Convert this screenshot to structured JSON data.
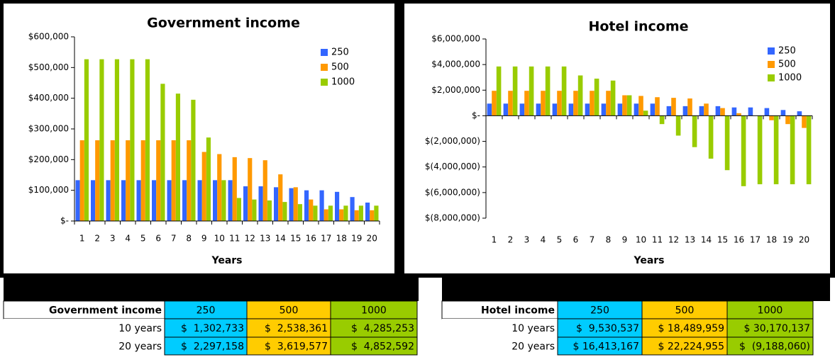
{
  "chart_data": [
    {
      "type": "bar",
      "title": "Government income",
      "x_label": "Years",
      "categories": [
        "1",
        "2",
        "3",
        "4",
        "5",
        "6",
        "7",
        "8",
        "9",
        "10",
        "11",
        "12",
        "13",
        "14",
        "15",
        "16",
        "17",
        "18",
        "19",
        "20"
      ],
      "series": [
        {
          "name": "250",
          "color": "#3366ff",
          "values": [
            133000,
            133000,
            133000,
            133000,
            133000,
            133000,
            133000,
            133000,
            133000,
            133000,
            133000,
            113000,
            113000,
            110000,
            107000,
            100000,
            100000,
            95000,
            78000,
            60000
          ]
        },
        {
          "name": "500",
          "color": "#ff9900",
          "values": [
            263000,
            263000,
            263000,
            263000,
            263000,
            263000,
            263000,
            263000,
            225000,
            218000,
            208000,
            205000,
            198000,
            152000,
            110000,
            70000,
            38000,
            38000,
            35000,
            35000
          ]
        },
        {
          "name": "1000",
          "color": "#99cc00",
          "values": [
            527000,
            527000,
            527000,
            527000,
            527000,
            447000,
            415000,
            395000,
            272000,
            133000,
            75000,
            70000,
            67000,
            62000,
            55000,
            50000,
            50000,
            50000,
            50000,
            50000
          ]
        }
      ],
      "ylim": [
        0,
        600000
      ],
      "yticks": [
        {
          "value": 0,
          "label": "$-"
        },
        {
          "value": 100000,
          "label": "$100,000"
        },
        {
          "value": 200000,
          "label": "$200,000"
        },
        {
          "value": 300000,
          "label": "$300,000"
        },
        {
          "value": 400000,
          "label": "$400,000"
        },
        {
          "value": 500000,
          "label": "$500,000"
        },
        {
          "value": 600000,
          "label": "$600,000"
        }
      ],
      "legend": "upper right",
      "grid": false
    },
    {
      "type": "bar",
      "title": "Hotel income",
      "x_label": "Years",
      "categories": [
        "1",
        "2",
        "3",
        "4",
        "5",
        "6",
        "7",
        "8",
        "9",
        "10",
        "11",
        "12",
        "13",
        "14",
        "15",
        "16",
        "17",
        "18",
        "19",
        "20"
      ],
      "series": [
        {
          "name": "250",
          "color": "#3366ff",
          "values": [
            950000,
            950000,
            950000,
            950000,
            950000,
            950000,
            950000,
            950000,
            950000,
            950000,
            950000,
            750000,
            750000,
            750000,
            750000,
            650000,
            650000,
            600000,
            450000,
            350000
          ]
        },
        {
          "name": "500",
          "color": "#ff9900",
          "values": [
            1950000,
            1950000,
            1950000,
            1950000,
            1950000,
            1950000,
            1950000,
            1950000,
            1600000,
            1550000,
            1450000,
            1400000,
            1350000,
            950000,
            600000,
            200000,
            0,
            -350000,
            -650000,
            -950000
          ]
        },
        {
          "name": "1000",
          "color": "#99cc00",
          "values": [
            3850000,
            3850000,
            3850000,
            3850000,
            3850000,
            3150000,
            2900000,
            2750000,
            1600000,
            400000,
            -650000,
            -1550000,
            -2450000,
            -3350000,
            -4250000,
            -5500000,
            -5350000,
            -5350000,
            -5350000,
            -5350000
          ]
        }
      ],
      "ylim": [
        -8000000,
        6000000
      ],
      "yticks": [
        {
          "value": -8000000,
          "label": "$(8,000,000)"
        },
        {
          "value": -6000000,
          "label": "$(6,000,000)"
        },
        {
          "value": -4000000,
          "label": "$(4,000,000)"
        },
        {
          "value": -2000000,
          "label": "$(2,000,000)"
        },
        {
          "value": 0,
          "label": "$-"
        },
        {
          "value": 2000000,
          "label": "$2,000,000"
        },
        {
          "value": 4000000,
          "label": "$4,000,000"
        },
        {
          "value": 6000000,
          "label": "$6,000,000"
        }
      ],
      "legend": "upper right",
      "grid": false
    }
  ],
  "tables": [
    {
      "header": [
        "Government income",
        "250",
        "500",
        "1000"
      ],
      "rows": [
        [
          "10 years",
          "$  1,302,733",
          "$  2,538,361",
          "$  4,285,253"
        ],
        [
          "20 years",
          "$  2,297,158",
          "$  3,619,577",
          "$  4,852,592"
        ]
      ]
    },
    {
      "header": [
        "Hotel income",
        "250",
        "500",
        "1000"
      ],
      "rows": [
        [
          "10 years",
          "$  9,530,537",
          "$ 18,489,959",
          "$ 30,170,137"
        ],
        [
          "20 years",
          "$ 16,413,167",
          "$ 22,224,955",
          "$  (9,188,060)"
        ]
      ]
    }
  ]
}
